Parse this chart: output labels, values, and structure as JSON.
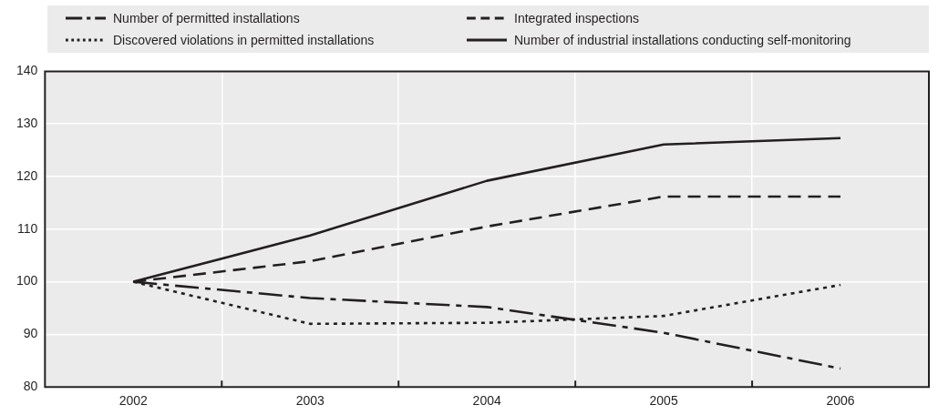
{
  "chart_data": {
    "type": "line",
    "categories": [
      "2002",
      "2003",
      "2004",
      "2005",
      "2006"
    ],
    "series": [
      {
        "name": "Number of permitted installations",
        "color": "#231f20",
        "line_style": "dashdot",
        "values": [
          100,
          96.9,
          95.2,
          90.3,
          83.5
        ]
      },
      {
        "name": "Integrated inspections",
        "color": "#231f20",
        "line_style": "dashed",
        "values": [
          100,
          103.9,
          110.5,
          116.2,
          116.2
        ]
      },
      {
        "name": "Discovered violations in permitted installations",
        "color": "#231f20",
        "line_style": "dotted",
        "values": [
          100,
          92,
          92.2,
          93.5,
          99.4
        ]
      },
      {
        "name": "Number of industrial installations conducting self-monitoring",
        "color": "#231f20",
        "line_style": "solid",
        "values": [
          100,
          108.8,
          119.2,
          126.1,
          127.3
        ]
      }
    ],
    "ylim": [
      80,
      140
    ],
    "yticks": [
      80,
      90,
      100,
      110,
      120,
      130,
      140
    ],
    "grid": true,
    "legend": "top",
    "marker": "none"
  }
}
